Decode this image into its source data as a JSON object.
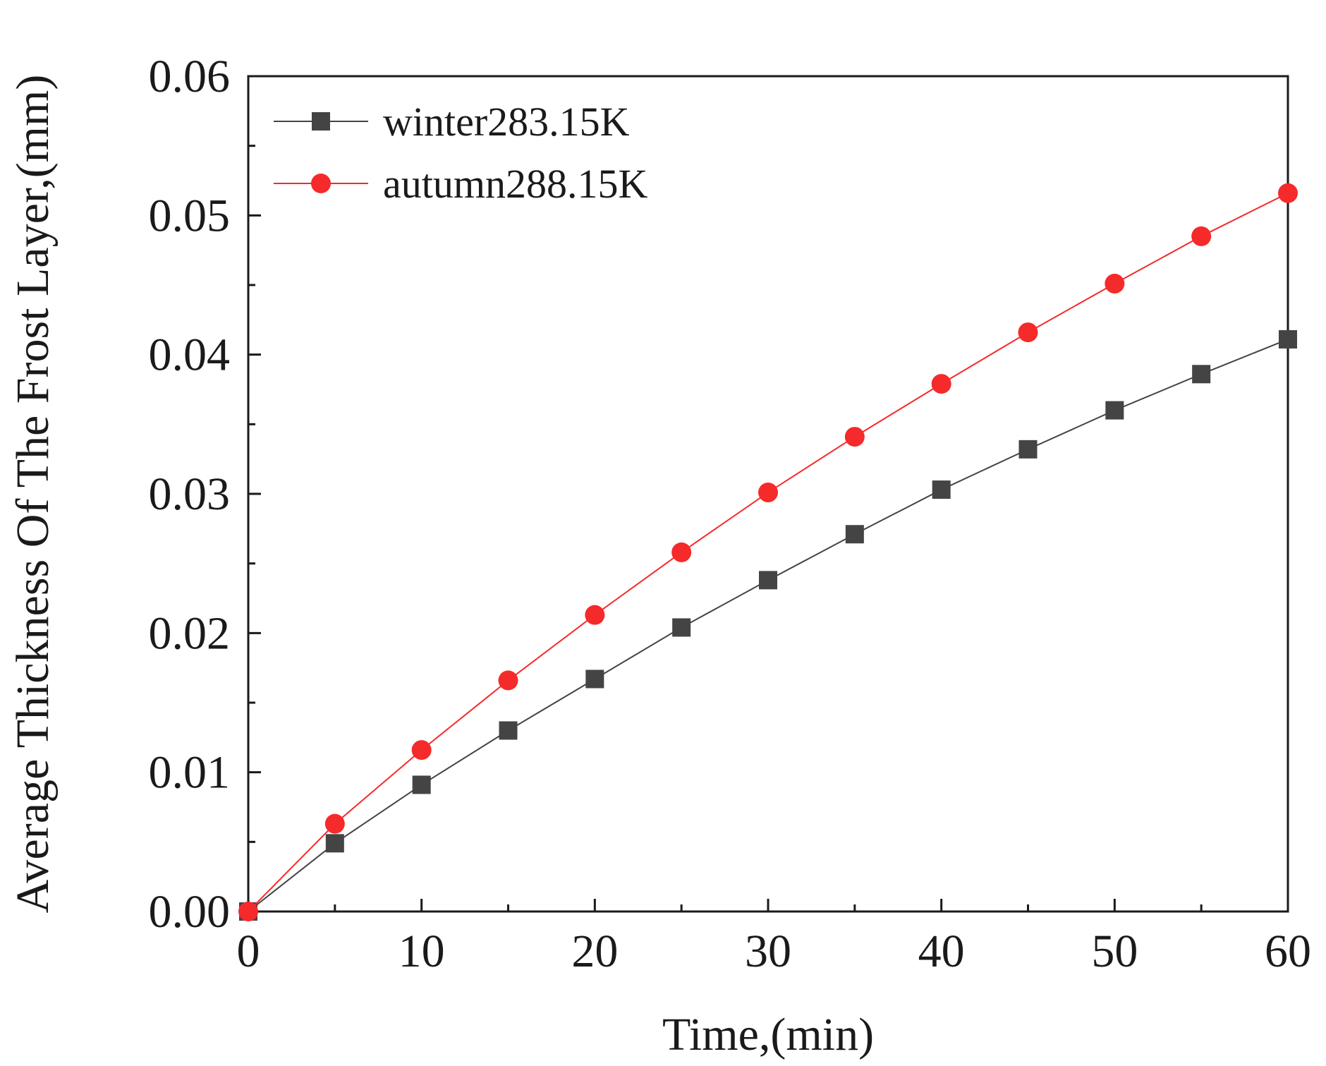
{
  "chart_data": {
    "type": "line",
    "title": "",
    "xlabel": "Time,(min)",
    "ylabel": "Average Thickness Of The Frost Layer,(mm)",
    "xlim": [
      0,
      60
    ],
    "ylim": [
      0,
      0.06
    ],
    "x_ticks": [
      "0",
      "10",
      "20",
      "30",
      "40",
      "50",
      "60"
    ],
    "y_ticks": [
      "0.00",
      "0.01",
      "0.02",
      "0.03",
      "0.04",
      "0.05",
      "0.06"
    ],
    "grid": false,
    "legend_position": "top-left",
    "x": [
      0,
      5,
      10,
      15,
      20,
      25,
      30,
      35,
      40,
      45,
      50,
      55,
      60
    ],
    "series": [
      {
        "name": "winter283.15K",
        "marker": "square",
        "color": "#444444",
        "values": [
          0.0,
          0.0049,
          0.0091,
          0.013,
          0.0167,
          0.0204,
          0.0238,
          0.0271,
          0.0303,
          0.0332,
          0.036,
          0.0386,
          0.0411
        ]
      },
      {
        "name": "autumn288.15K",
        "marker": "circle",
        "color": "#f52a2a",
        "values": [
          0.0,
          0.0063,
          0.0116,
          0.0166,
          0.0213,
          0.0258,
          0.0301,
          0.0341,
          0.0379,
          0.0416,
          0.0451,
          0.0485,
          0.0516
        ]
      }
    ]
  }
}
